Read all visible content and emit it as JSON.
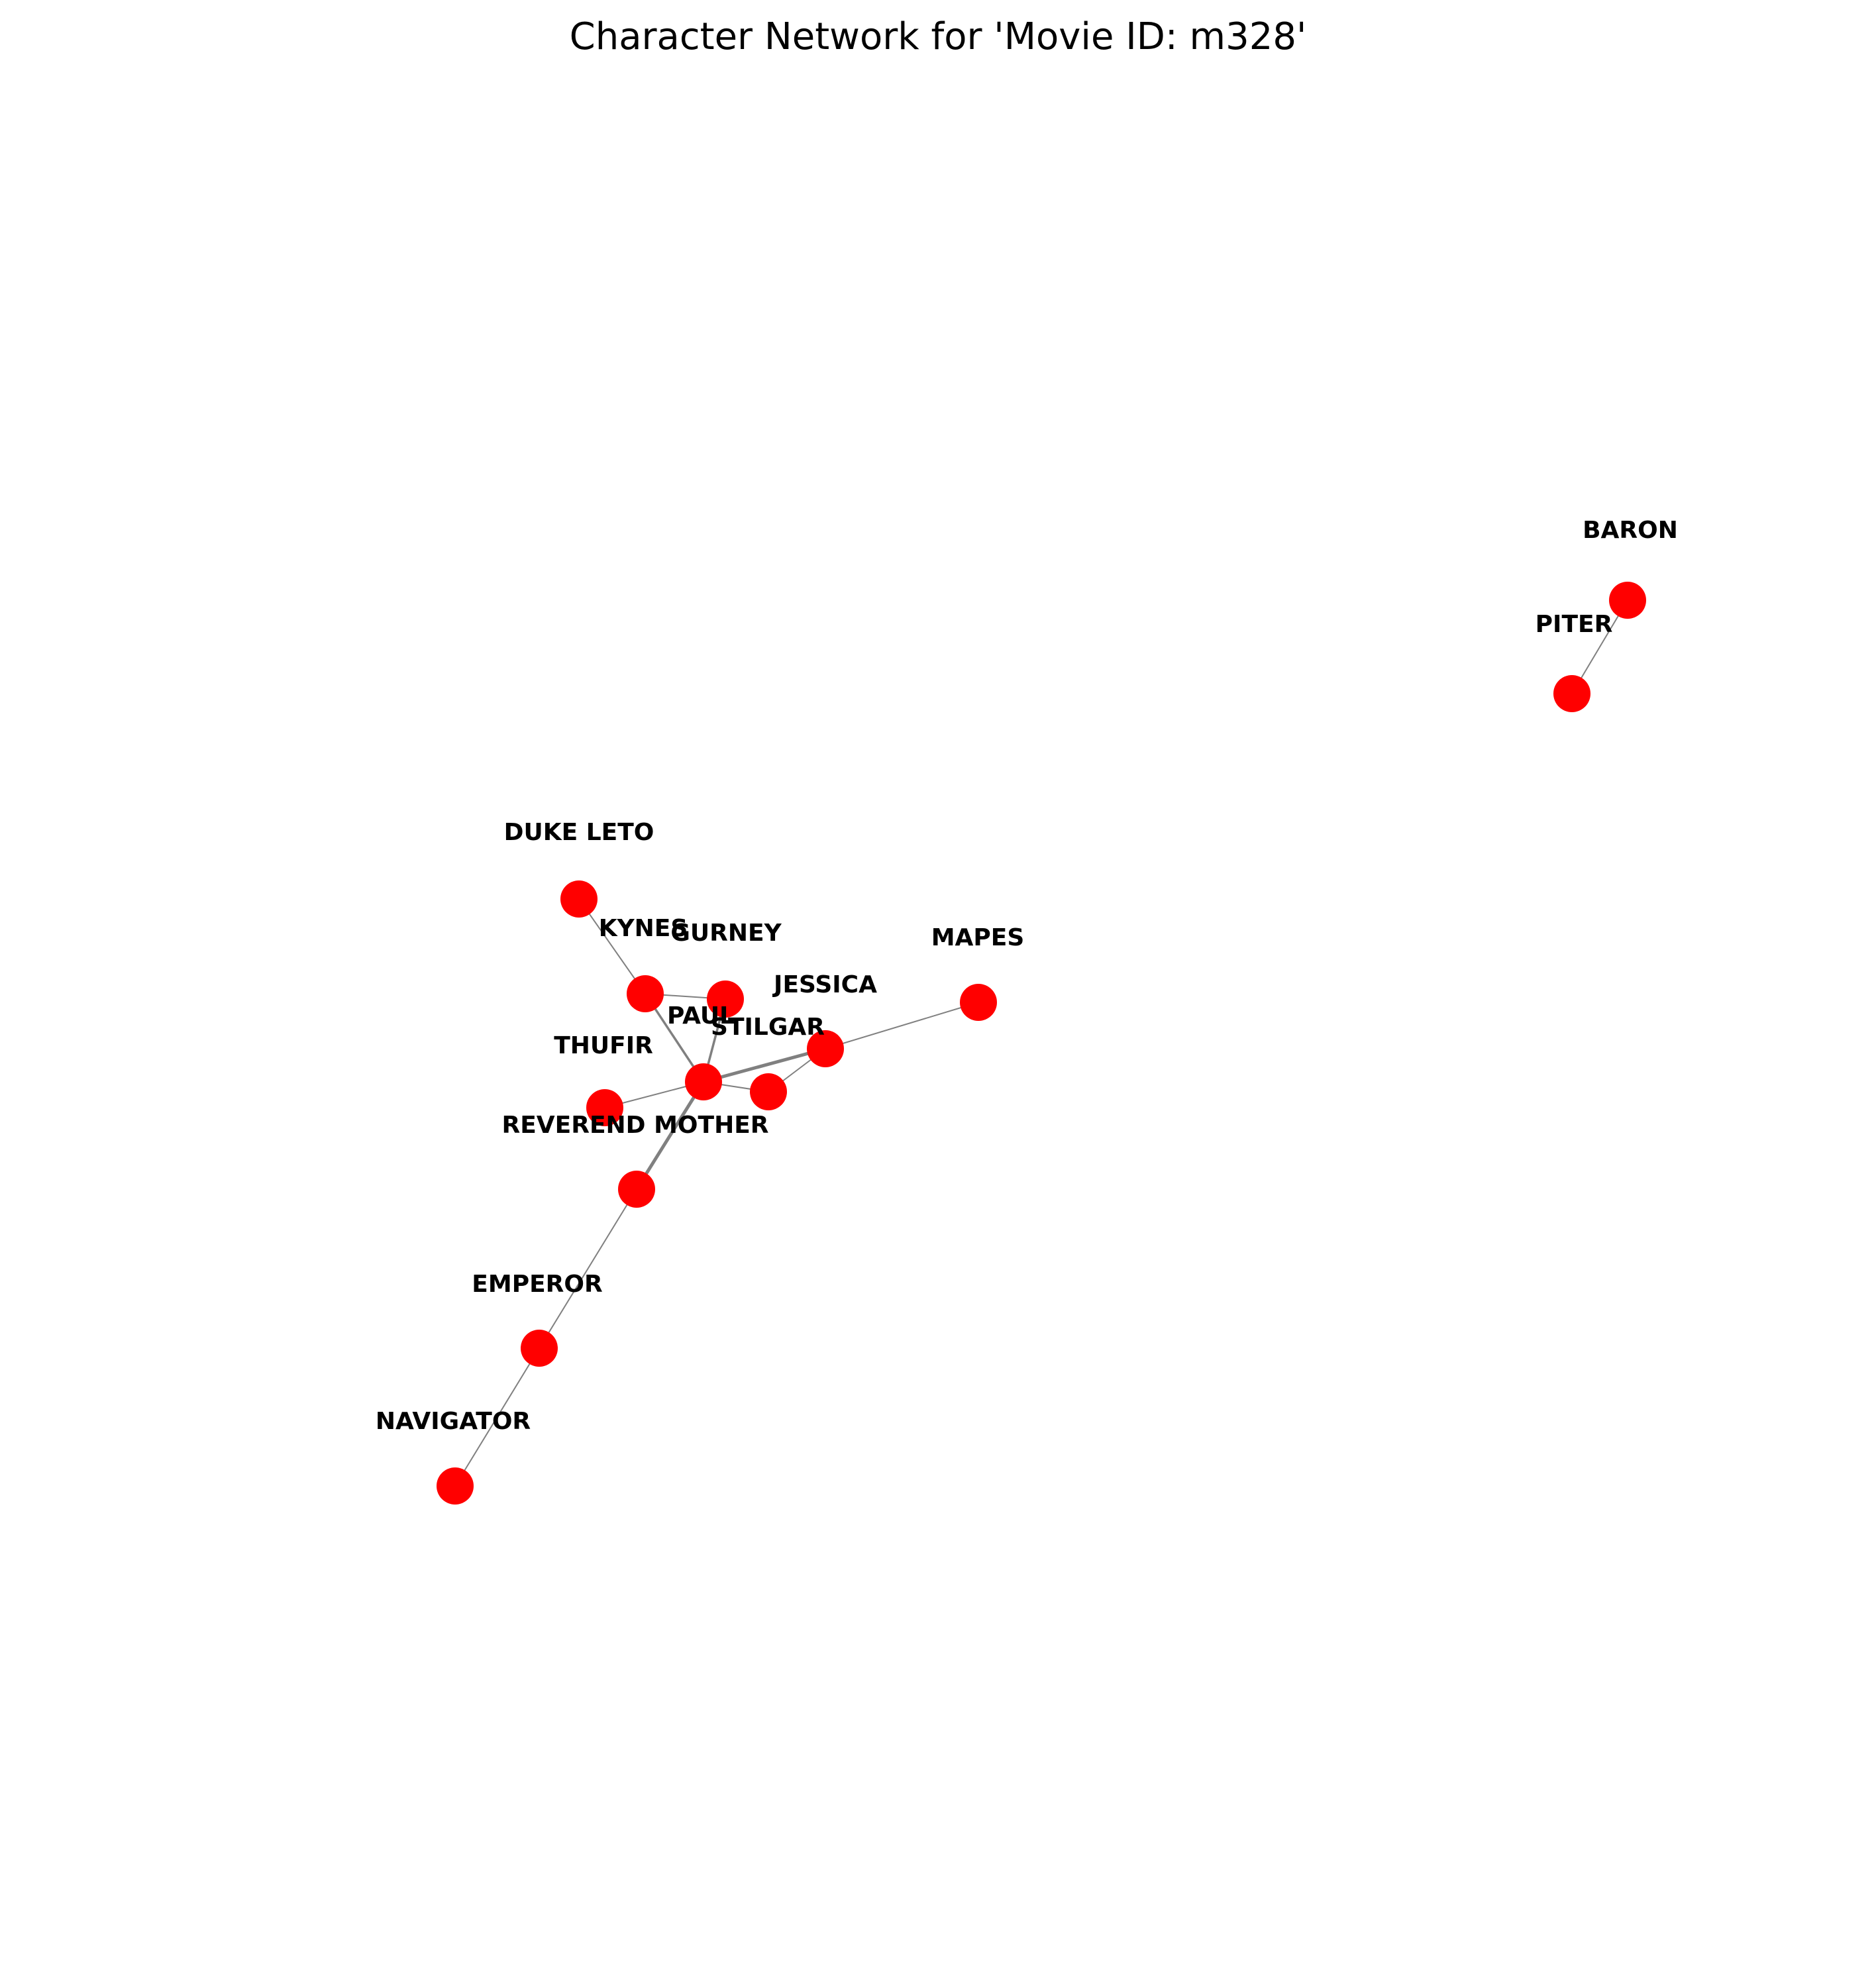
{
  "title": "Character Network for 'Movie ID: m328'",
  "colors": {
    "node": "#ff0000",
    "edge": "#808080",
    "label": "#000000",
    "background": "#ffffff"
  },
  "nodes": [
    {
      "id": "BARON",
      "label": "BARON"
    },
    {
      "id": "PITER",
      "label": "PITER"
    },
    {
      "id": "DUKE LETO",
      "label": "DUKE LETO"
    },
    {
      "id": "KYNES",
      "label": "KYNES"
    },
    {
      "id": "GURNEY",
      "label": "GURNEY"
    },
    {
      "id": "MAPES",
      "label": "MAPES"
    },
    {
      "id": "JESSICA",
      "label": "JESSICA"
    },
    {
      "id": "PAUL",
      "label": "PAUL"
    },
    {
      "id": "STILGAR",
      "label": "STILGAR"
    },
    {
      "id": "THUFIR",
      "label": "THUFIR"
    },
    {
      "id": "REVEREND MOTHER",
      "label": "REVEREND MOTHER"
    },
    {
      "id": "EMPEROR",
      "label": "EMPEROR"
    },
    {
      "id": "NAVIGATOR",
      "label": "NAVIGATOR"
    }
  ],
  "edges": [
    {
      "source": "BARON",
      "target": "PITER",
      "weight": 1
    },
    {
      "source": "DUKE LETO",
      "target": "KYNES",
      "weight": 1
    },
    {
      "source": "KYNES",
      "target": "GURNEY",
      "weight": 1
    },
    {
      "source": "KYNES",
      "target": "PAUL",
      "weight": 2
    },
    {
      "source": "GURNEY",
      "target": "PAUL",
      "weight": 2
    },
    {
      "source": "PAUL",
      "target": "JESSICA",
      "weight": 3
    },
    {
      "source": "PAUL",
      "target": "STILGAR",
      "weight": 1
    },
    {
      "source": "STILGAR",
      "target": "JESSICA",
      "weight": 1
    },
    {
      "source": "JESSICA",
      "target": "MAPES",
      "weight": 1
    },
    {
      "source": "PAUL",
      "target": "THUFIR",
      "weight": 1
    },
    {
      "source": "PAUL",
      "target": "REVEREND MOTHER",
      "weight": 3
    },
    {
      "source": "REVEREND MOTHER",
      "target": "EMPEROR",
      "weight": 1
    },
    {
      "source": "EMPEROR",
      "target": "NAVIGATOR",
      "weight": 1
    }
  ]
}
